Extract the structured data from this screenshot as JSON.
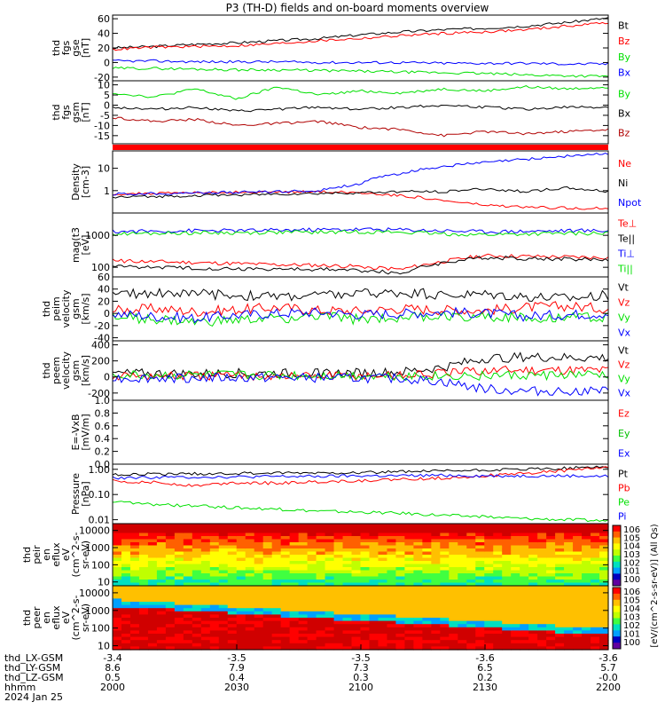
{
  "title": "P3 (TH-D) fields and on-board moments overview",
  "colors": {
    "black": "#000000",
    "red": "#ff0000",
    "green": "#00e000",
    "blue": "#0000ff",
    "dkred": "#b00000"
  },
  "chart_data": [
    {
      "type": "line",
      "id": "fgs_gse",
      "ylabel": [
        "thd",
        "fgs",
        "gse",
        "[nT]"
      ],
      "ylim": [
        -25,
        65
      ],
      "yticks": [
        -20,
        0,
        20,
        40,
        60
      ],
      "series": [
        {
          "name": "Bt",
          "color": "black",
          "values": [
            20,
            22,
            25,
            27,
            30,
            33,
            38,
            42,
            45,
            47,
            50,
            55,
            61
          ]
        },
        {
          "name": "Bz",
          "color": "red",
          "values": [
            18,
            21,
            22,
            23,
            26,
            30,
            33,
            37,
            40,
            42,
            45,
            50,
            55
          ]
        },
        {
          "name": "By",
          "color": "green",
          "values": [
            -8,
            -8,
            -9,
            -10,
            -10,
            -11,
            -12,
            -13,
            -14,
            -15,
            -17,
            -18,
            -19
          ]
        },
        {
          "name": "Bx",
          "color": "blue",
          "values": [
            2,
            2,
            1,
            1,
            1,
            0,
            0,
            0,
            -1,
            -1,
            -1,
            -2,
            -2
          ]
        }
      ],
      "legend": [
        "Bt",
        "Bz",
        "By",
        "Bx"
      ]
    },
    {
      "type": "line",
      "id": "fgs_gsm",
      "ylabel": [
        "thd",
        "fgs",
        "gsm",
        "[nT]"
      ],
      "ylim": [
        -19,
        12
      ],
      "yticks": [
        -15,
        -10,
        -5,
        0,
        5,
        10
      ],
      "series": [
        {
          "name": "By",
          "color": "green",
          "values": [
            6,
            4,
            8,
            3,
            9,
            5,
            7,
            6,
            8,
            7,
            9,
            8,
            9
          ]
        },
        {
          "name": "Bx",
          "color": "black",
          "values": [
            -1,
            -2,
            -1,
            -3,
            -2,
            -1,
            -2,
            -1,
            0,
            -1,
            -2,
            -1,
            -1
          ]
        },
        {
          "name": "Bz",
          "color": "dkred",
          "values": [
            -6,
            -8,
            -7,
            -10,
            -9,
            -8,
            -11,
            -12,
            -15,
            -13,
            -14,
            -13,
            -12
          ]
        }
      ],
      "legend": [
        "By",
        "Bx",
        "Bz"
      ]
    },
    {
      "type": "line",
      "id": "density",
      "scale": "log",
      "ylabel": [
        "Density",
        "[cm-3]"
      ],
      "ylim": [
        0.1,
        60
      ],
      "yticks": [
        1,
        10
      ],
      "series": [
        {
          "name": "Ne",
          "color": "red",
          "values": [
            0.7,
            0.75,
            0.8,
            0.85,
            0.85,
            0.9,
            0.8,
            0.6,
            0.35,
            0.22,
            0.18,
            0.17,
            0.16
          ]
        },
        {
          "name": "Ni",
          "color": "black",
          "values": [
            0.5,
            0.55,
            0.6,
            0.65,
            0.7,
            0.75,
            0.8,
            0.9,
            0.9,
            1.2,
            0.9,
            1.3,
            0.9
          ]
        },
        {
          "name": "Npot",
          "color": "blue",
          "values": [
            0.7,
            0.75,
            0.8,
            0.85,
            0.9,
            1.0,
            2,
            6,
            12,
            18,
            25,
            35,
            45
          ]
        }
      ],
      "legend": [
        "Ne",
        "Ni",
        "Npot"
      ]
    },
    {
      "type": "line",
      "id": "temperature",
      "scale": "log",
      "ylabel": [
        "mag(t3",
        "[eV]"
      ],
      "ylim": [
        50,
        5000
      ],
      "yticks": [
        100,
        1000
      ],
      "series": [
        {
          "name": "Te⊥",
          "color": "red",
          "values": [
            160,
            150,
            140,
            130,
            120,
            115,
            105,
            85,
            150,
            230,
            220,
            210,
            200
          ]
        },
        {
          "name": "Te||",
          "color": "black",
          "values": [
            110,
            100,
            95,
            90,
            88,
            86,
            80,
            65,
            140,
            200,
            190,
            180,
            175
          ]
        },
        {
          "name": "Ti⊥",
          "color": "blue",
          "values": [
            1300,
            1350,
            1400,
            1400,
            1450,
            1500,
            1550,
            1500,
            1400,
            1300,
            1350,
            1400,
            1400
          ]
        },
        {
          "name": "Ti||",
          "color": "green",
          "values": [
            1100,
            1150,
            1200,
            1200,
            1250,
            1250,
            1300,
            1250,
            1100,
            1050,
            1100,
            1150,
            1150
          ]
        }
      ],
      "legend": [
        "Te⊥",
        "Te||",
        "Ti⊥",
        "Ti||"
      ]
    },
    {
      "type": "line",
      "id": "peim",
      "ylabel": [
        "thd",
        "peim",
        "velocity",
        "gsm",
        "[km/s]"
      ],
      "ylim": [
        -45,
        60
      ],
      "yticks": [
        -40,
        -20,
        0,
        20,
        40,
        60
      ],
      "series": [
        {
          "name": "Vt",
          "color": "black",
          "values": [
            30,
            35,
            32,
            30,
            28,
            30,
            32,
            35,
            30,
            32,
            28,
            25,
            30
          ]
        },
        {
          "name": "Vz",
          "color": "red",
          "values": [
            5,
            8,
            3,
            6,
            10,
            5,
            4,
            8,
            6,
            5,
            10,
            12,
            8
          ]
        },
        {
          "name": "Vy",
          "color": "green",
          "values": [
            -5,
            -10,
            -15,
            -12,
            -8,
            -5,
            -10,
            -6,
            -5,
            -4,
            -8,
            -5,
            -6
          ]
        },
        {
          "name": "Vx",
          "color": "blue",
          "values": [
            0,
            -5,
            -8,
            -3,
            0,
            2,
            -2,
            0,
            2,
            0,
            -5,
            -2,
            0
          ]
        }
      ],
      "legend": [
        "Vt",
        "Vz",
        "Vy",
        "Vx"
      ]
    },
    {
      "type": "line",
      "id": "peem",
      "ylabel": [
        "thd",
        "peem",
        "velocity",
        "gsm",
        "[km/s]"
      ],
      "ylim": [
        -290,
        450
      ],
      "yticks": [
        -200,
        0,
        200,
        400
      ],
      "series": [
        {
          "name": "Vt",
          "color": "black",
          "values": [
            40,
            42,
            40,
            45,
            43,
            45,
            50,
            60,
            120,
            230,
            250,
            240,
            240
          ]
        },
        {
          "name": "Vz",
          "color": "red",
          "values": [
            10,
            12,
            10,
            14,
            12,
            12,
            15,
            20,
            40,
            80,
            90,
            90,
            85
          ]
        },
        {
          "name": "Vy",
          "color": "green",
          "values": [
            20,
            18,
            22,
            20,
            18,
            20,
            18,
            15,
            10,
            20,
            15,
            25,
            20
          ]
        },
        {
          "name": "Vx",
          "color": "blue",
          "values": [
            -15,
            -12,
            -10,
            -12,
            -10,
            -12,
            -15,
            -20,
            -60,
            -150,
            -180,
            -170,
            -175
          ]
        }
      ],
      "legend": [
        "Vt",
        "Vz",
        "Vy",
        "Vx"
      ]
    },
    {
      "type": "line",
      "id": "efield",
      "ylabel": [
        "E=-VxB",
        "[mV/m]"
      ],
      "ylim": [
        0,
        1.0
      ],
      "yticks": [
        0.0,
        0.2,
        0.4,
        0.6,
        0.8,
        1.0
      ],
      "series": [],
      "legend": [
        "Ez",
        "Ey",
        "Ex"
      ]
    },
    {
      "type": "line",
      "id": "pressure",
      "scale": "log",
      "ylabel": [
        "Pressure",
        "[nPa]"
      ],
      "ylim": [
        0.007,
        1.6
      ],
      "yticks": [
        0.01,
        0.1,
        1.0
      ],
      "series": [
        {
          "name": "Pt",
          "color": "black",
          "values": [
            0.62,
            0.64,
            0.66,
            0.68,
            0.7,
            0.72,
            0.75,
            0.8,
            0.85,
            0.92,
            1.0,
            1.1,
            1.3
          ]
        },
        {
          "name": "Pb",
          "color": "red",
          "values": [
            0.35,
            0.3,
            0.22,
            0.3,
            0.28,
            0.32,
            0.35,
            0.4,
            0.45,
            0.55,
            0.7,
            0.9,
            1.2
          ]
        },
        {
          "name": "Pe",
          "color": "green",
          "values": [
            0.05,
            0.04,
            0.035,
            0.03,
            0.026,
            0.022,
            0.02,
            0.018,
            0.015,
            0.013,
            0.011,
            0.01,
            0.009
          ]
        },
        {
          "name": "Pi",
          "color": "blue",
          "values": [
            0.45,
            0.48,
            0.5,
            0.5,
            0.52,
            0.52,
            0.55,
            0.55,
            0.58,
            0.55,
            0.55,
            0.55,
            0.52
          ]
        }
      ],
      "legend": [
        "Pt",
        "Pb",
        "Pe",
        "Pi"
      ]
    },
    {
      "type": "heatmap",
      "id": "peir",
      "ylabel": [
        "thd",
        "peir",
        "en",
        "eflux",
        "eV",
        "(cm^2-s-",
        "sr-eV)"
      ],
      "ylim": [
        6,
        25000
      ],
      "yticks": [
        10,
        100,
        1000,
        10000
      ]
    },
    {
      "type": "heatmap",
      "id": "peer",
      "ylabel": [
        "thd",
        "peer",
        "en",
        "eflux",
        "eV",
        "(cm^2-s-",
        "sr-eV)"
      ],
      "ylim": [
        6,
        25000
      ],
      "yticks": [
        10,
        100,
        1000,
        10000
      ]
    }
  ],
  "colorbar": {
    "ticks": [
      "10^6",
      "10^5",
      "10^4",
      "10^3",
      "10^2",
      "10^1",
      "10^0"
    ],
    "ticks2": [
      "10^6",
      "10^5",
      "10^4",
      "10^3",
      "10^2",
      "10^1",
      "10^0"
    ],
    "label": "[eV/(cm^2-s-sr-eV)] (All Qs)"
  },
  "xaxis": {
    "rows": [
      {
        "label": "thd_LX-GSM",
        "values": [
          "-3.4",
          "-3.5",
          "-3.5",
          "-3.6",
          "-3.6"
        ]
      },
      {
        "label": "thd_LY-GSM",
        "values": [
          "8.6",
          "7.9",
          "7.3",
          "6.5",
          "5.7"
        ]
      },
      {
        "label": "thd_LZ-GSM",
        "values": [
          "0.5",
          "0.4",
          "0.3",
          "0.2",
          "-0.0"
        ]
      },
      {
        "label": "hhmm",
        "values": [
          "2000",
          "2030",
          "2100",
          "2130",
          "2200"
        ]
      }
    ],
    "date": "2024 Jan 25"
  }
}
